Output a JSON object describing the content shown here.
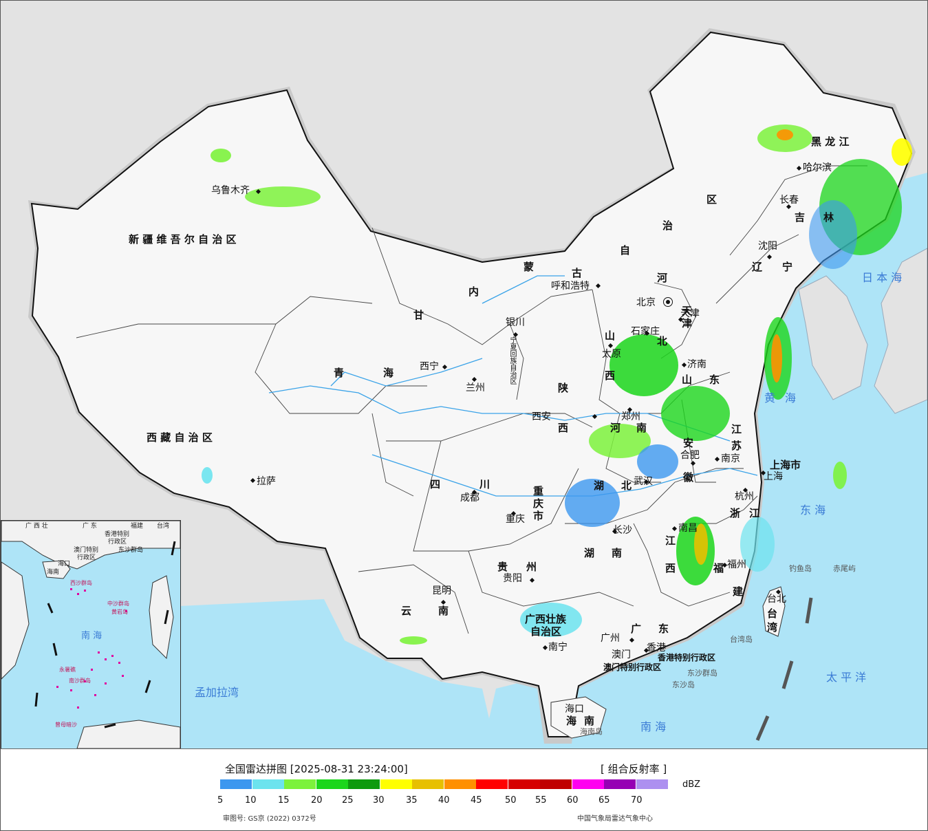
{
  "legend": {
    "title": "全国雷达拼图 [2025-08-31 23:24:00]",
    "product": "[ 组合反射率 ]",
    "unit": "dBZ",
    "colors": [
      "#3c97ef",
      "#6ce3ee",
      "#7cf23c",
      "#1bd61b",
      "#0e9a0e",
      "#ffff00",
      "#e7c000",
      "#ff9000",
      "#ff0000",
      "#d60000",
      "#c00000",
      "#ff00f0",
      "#9600b4",
      "#ad90f0"
    ],
    "ticks": [
      "5",
      "10",
      "15",
      "20",
      "25",
      "30",
      "35",
      "40",
      "45",
      "50",
      "55",
      "60",
      "65",
      "70"
    ],
    "approval": "审图号: GS京 (2022) 0372号",
    "source": "中国气象局雷达气象中心"
  },
  "cities": [
    {
      "name": "乌鲁木齐"
    },
    {
      "name": "拉萨"
    },
    {
      "name": "西宁"
    },
    {
      "name": "兰州"
    },
    {
      "name": "银川"
    },
    {
      "name": "呼和浩特"
    },
    {
      "name": "太原"
    },
    {
      "name": "石家庄"
    },
    {
      "name": "北京"
    },
    {
      "name": "天津"
    },
    {
      "name": "济南"
    },
    {
      "name": "郑州"
    },
    {
      "name": "西安"
    },
    {
      "name": "成都"
    },
    {
      "name": "重庆"
    },
    {
      "name": "贵阳"
    },
    {
      "name": "昆明"
    },
    {
      "name": "南宁"
    },
    {
      "name": "广州"
    },
    {
      "name": "香港"
    },
    {
      "name": "澳门"
    },
    {
      "name": "海口"
    },
    {
      "name": "长沙"
    },
    {
      "name": "武汉"
    },
    {
      "name": "合肥"
    },
    {
      "name": "南京"
    },
    {
      "name": "上海"
    },
    {
      "name": "杭州"
    },
    {
      "name": "南昌"
    },
    {
      "name": "福州"
    },
    {
      "name": "台北"
    },
    {
      "name": "沈阳"
    },
    {
      "name": "长春"
    },
    {
      "name": "哈尔滨"
    }
  ],
  "provinces": [
    {
      "name": "新 疆 维 吾 尔 自 治 区"
    },
    {
      "name": "西 藏 自 治 区"
    },
    {
      "name": "青"
    },
    {
      "name": "海"
    },
    {
      "name": "甘"
    },
    {
      "name": "内"
    },
    {
      "name": "蒙"
    },
    {
      "name": "古"
    },
    {
      "name": "自"
    },
    {
      "name": "治"
    },
    {
      "name": "区"
    },
    {
      "name": "黑  龙  江"
    },
    {
      "name": "吉"
    },
    {
      "name": "林"
    },
    {
      "name": "辽"
    },
    {
      "name": "宁"
    },
    {
      "name": "河"
    },
    {
      "name": "北"
    },
    {
      "name": "山"
    },
    {
      "name": "西"
    },
    {
      "name": "山"
    },
    {
      "name": "东"
    },
    {
      "name": "陕"
    },
    {
      "name": "西"
    },
    {
      "name": "河"
    },
    {
      "name": "南"
    },
    {
      "name": "四"
    },
    {
      "name": "川"
    },
    {
      "name": "重"
    },
    {
      "name": "庆"
    },
    {
      "name": "市"
    },
    {
      "name": "湖"
    },
    {
      "name": "北"
    },
    {
      "name": "湖"
    },
    {
      "name": "南"
    },
    {
      "name": "贵"
    },
    {
      "name": "州"
    },
    {
      "name": "云"
    },
    {
      "name": "南"
    },
    {
      "name": "广西壮族"
    },
    {
      "name": "自治区"
    },
    {
      "name": "广"
    },
    {
      "name": "东"
    },
    {
      "name": "江"
    },
    {
      "name": "西"
    },
    {
      "name": "福"
    },
    {
      "name": "建"
    },
    {
      "name": "浙"
    },
    {
      "name": "江"
    },
    {
      "name": "江"
    },
    {
      "name": "苏"
    },
    {
      "name": "安"
    },
    {
      "name": "徽"
    },
    {
      "name": "上海市"
    },
    {
      "name": "台"
    },
    {
      "name": "湾"
    },
    {
      "name": "海"
    },
    {
      "name": "南"
    },
    {
      "name": "宁夏回族自治区"
    },
    {
      "name": "天"
    },
    {
      "name": "津"
    },
    {
      "name": "香港特别行政区"
    },
    {
      "name": "澳门特别行政区"
    }
  ],
  "seas": [
    {
      "name": "日 本 海"
    },
    {
      "name": "黄"
    },
    {
      "name": "海"
    },
    {
      "name": "东    海"
    },
    {
      "name": "太    平    洋"
    },
    {
      "name": "南          海"
    },
    {
      "name": "孟加拉湾"
    }
  ],
  "islands": [
    {
      "name": "钓鱼岛"
    },
    {
      "name": "赤尾屿"
    },
    {
      "name": "台湾岛"
    },
    {
      "name": "东沙群岛"
    },
    {
      "name": "东沙岛"
    },
    {
      "name": "海南岛"
    }
  ],
  "inset": {
    "labels": [
      {
        "name": "广 西 壮"
      },
      {
        "name": "广  东"
      },
      {
        "name": "福建"
      },
      {
        "name": "台湾"
      },
      {
        "name": "香港特别"
      },
      {
        "name": "行政区"
      },
      {
        "name": "澳门特别"
      },
      {
        "name": "行政区"
      },
      {
        "name": "东沙群岛"
      },
      {
        "name": "海口"
      },
      {
        "name": "海南"
      },
      {
        "name": "西沙群岛"
      },
      {
        "name": "中沙群岛"
      },
      {
        "name": "黄岩岛"
      },
      {
        "name": "南   海"
      },
      {
        "name": "永暑礁"
      },
      {
        "name": "南沙群岛"
      },
      {
        "name": "曾母暗沙"
      }
    ]
  }
}
